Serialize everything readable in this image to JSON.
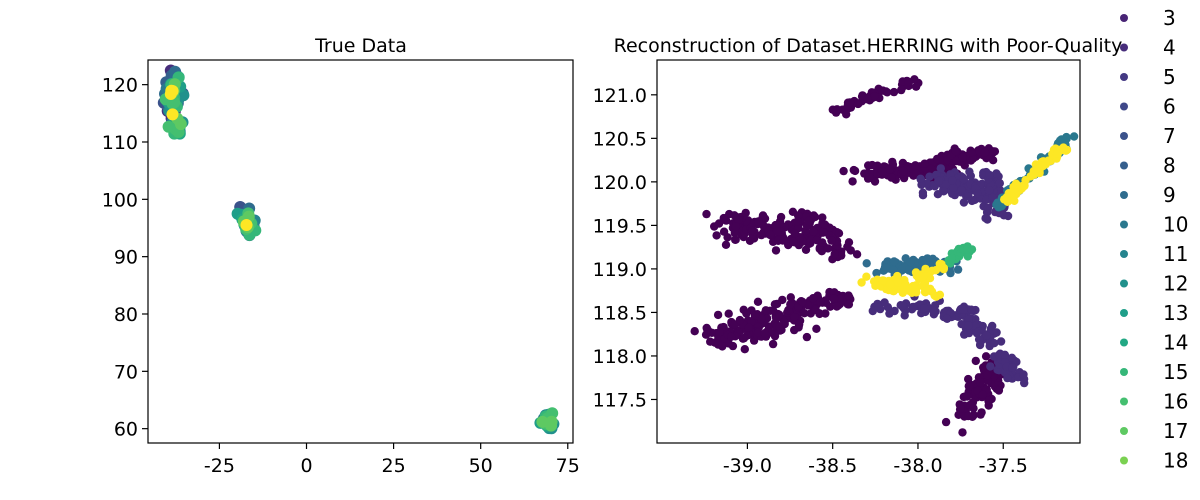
{
  "chart_data": [
    {
      "type": "scatter",
      "title": "True Data",
      "xlabel": "",
      "ylabel": "",
      "xlim": [
        -45.5,
        76.5
      ],
      "ylim": [
        57.5,
        124.3
      ],
      "xticks": [
        -25,
        0,
        25,
        50,
        75
      ],
      "yticks": [
        60,
        70,
        80,
        90,
        100,
        110,
        120
      ],
      "xtick_labels": [
        "-25",
        "0",
        "25",
        "50",
        "75"
      ],
      "ytick_labels": [
        "60",
        "70",
        "80",
        "90",
        "100",
        "110",
        "120"
      ],
      "grid": false,
      "clusters": [
        {
          "x": -38.5,
          "y": 118.0,
          "count": 90,
          "sx": 1.2,
          "sy": 2.2,
          "level_range": [
            3,
            18
          ]
        },
        {
          "x": -37.0,
          "y": 112.3,
          "count": 20,
          "sx": 0.6,
          "sy": 0.6,
          "level_range": [
            9,
            17
          ]
        },
        {
          "x": -17.0,
          "y": 96.0,
          "count": 50,
          "sx": 0.8,
          "sy": 1.3,
          "level_range": [
            6,
            18
          ]
        },
        {
          "x": 69.5,
          "y": 61.3,
          "count": 30,
          "sx": 1.0,
          "sy": 0.5,
          "level_range": [
            10,
            17
          ]
        }
      ]
    },
    {
      "type": "scatter",
      "title": "Reconstruction of Dataset.HERRING with Poor-Quality",
      "xlabel": "",
      "ylabel": "",
      "xlim": [
        -39.53,
        -37.05
      ],
      "ylim": [
        117.0,
        121.4
      ],
      "xticks": [
        -39.0,
        -38.5,
        -38.0,
        -37.5
      ],
      "yticks": [
        117.5,
        118.0,
        118.5,
        119.0,
        119.5,
        120.0,
        120.5,
        121.0
      ],
      "xtick_labels": [
        "-39.0",
        "-38.5",
        "-38.0",
        "-37.5"
      ],
      "ytick_labels": [
        "117.5",
        "118.0",
        "118.5",
        "119.0",
        "119.5",
        "120.0",
        "120.5",
        "121.0"
      ],
      "grid": false,
      "clusters": [
        {
          "x0": -38.5,
          "y0": 120.8,
          "x1": -38.0,
          "y1": 121.17,
          "count": 45,
          "spread": 0.025,
          "level": 3
        },
        {
          "x0": -39.1,
          "y0": 119.55,
          "x1": -38.65,
          "y1": 119.35,
          "count": 140,
          "spread": 0.08,
          "level": 3
        },
        {
          "x0": -38.65,
          "y0": 119.6,
          "x1": -38.45,
          "y1": 119.15,
          "count": 60,
          "spread": 0.05,
          "level": 3
        },
        {
          "x0": -39.2,
          "y0": 118.2,
          "x1": -38.75,
          "y1": 118.5,
          "count": 150,
          "spread": 0.09,
          "level": 3
        },
        {
          "x0": -38.75,
          "y0": 118.55,
          "x1": -38.45,
          "y1": 118.65,
          "count": 50,
          "spread": 0.05,
          "level": 3
        },
        {
          "x0": -38.35,
          "y0": 120.1,
          "x1": -37.85,
          "y1": 120.15,
          "count": 110,
          "spread": 0.05,
          "level": 3
        },
        {
          "x0": -37.85,
          "y0": 120.25,
          "x1": -37.55,
          "y1": 120.35,
          "count": 80,
          "spread": 0.04,
          "level": 3
        },
        {
          "x0": -37.7,
          "y0": 117.3,
          "x1": -37.55,
          "y1": 117.95,
          "count": 110,
          "spread": 0.05,
          "level": 3
        },
        {
          "x0": -38.25,
          "y0": 118.6,
          "x1": -37.7,
          "y1": 118.5,
          "count": 70,
          "spread": 0.04,
          "level": 4
        },
        {
          "x0": -37.7,
          "y0": 118.4,
          "x1": -37.4,
          "y1": 117.7,
          "count": 80,
          "spread": 0.04,
          "level": 4
        },
        {
          "x0": -37.9,
          "y0": 120.0,
          "x1": -37.55,
          "y1": 119.85,
          "count": 110,
          "spread": 0.07,
          "level": 4
        },
        {
          "x0": -37.6,
          "y0": 120.1,
          "x1": -37.55,
          "y1": 119.6,
          "count": 40,
          "spread": 0.04,
          "level": 4
        },
        {
          "x0": -38.2,
          "y0": 119.0,
          "x1": -37.8,
          "y1": 119.05,
          "count": 90,
          "spread": 0.04,
          "level": 9
        },
        {
          "x0": -37.55,
          "y0": 119.7,
          "x1": -37.1,
          "y1": 120.55,
          "count": 70,
          "spread": 0.02,
          "level": 10
        },
        {
          "x0": -37.8,
          "y0": 119.1,
          "x1": -37.7,
          "y1": 119.25,
          "count": 20,
          "spread": 0.02,
          "level": 15
        },
        {
          "x0": -38.25,
          "y0": 118.85,
          "x1": -37.9,
          "y1": 118.75,
          "count": 80,
          "spread": 0.04,
          "level": 18
        },
        {
          "x0": -37.5,
          "y0": 119.75,
          "x1": -37.15,
          "y1": 120.4,
          "count": 60,
          "spread": 0.02,
          "level": 18
        },
        {
          "x0": -38.0,
          "y0": 118.9,
          "x1": -37.85,
          "y1": 119.05,
          "count": 20,
          "spread": 0.02,
          "level": 18
        }
      ]
    }
  ],
  "legend": {
    "placement": "right",
    "entries": [
      {
        "label": "3",
        "color": "#482475"
      },
      {
        "label": "4",
        "color": "#472d7b"
      },
      {
        "label": "5",
        "color": "#443983"
      },
      {
        "label": "6",
        "color": "#3f4889"
      },
      {
        "label": "7",
        "color": "#3b528b"
      },
      {
        "label": "8",
        "color": "#355f8d"
      },
      {
        "label": "9",
        "color": "#2f6c8e"
      },
      {
        "label": "10",
        "color": "#2a788e"
      },
      {
        "label": "11",
        "color": "#25848e"
      },
      {
        "label": "12",
        "color": "#21918c"
      },
      {
        "label": "13",
        "color": "#1f9e89"
      },
      {
        "label": "14",
        "color": "#22a884"
      },
      {
        "label": "15",
        "color": "#35b779"
      },
      {
        "label": "16",
        "color": "#44bf70"
      },
      {
        "label": "17",
        "color": "#5ec962"
      },
      {
        "label": "18",
        "color": "#7ad151"
      }
    ]
  },
  "palette": {
    "level_3": "#440154",
    "level_18": "#fde725"
  }
}
